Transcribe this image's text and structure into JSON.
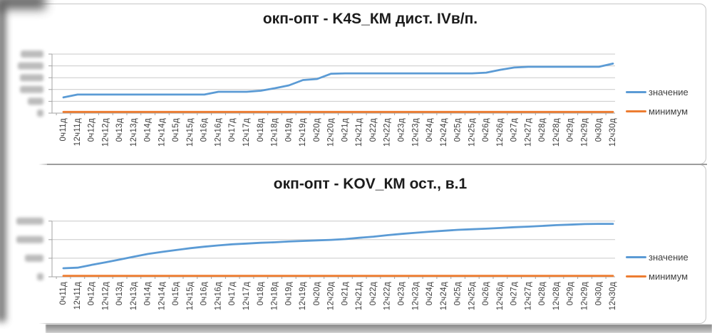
{
  "chart_data": [
    {
      "type": "line",
      "title": "окп-опт - K4S_КМ дист. IVв/п.",
      "categories": [
        "0ч11д",
        "12ч11д",
        "0ч12д",
        "12ч12д",
        "0ч13д",
        "12ч13д",
        "0ч14д",
        "12ч14д",
        "0ч15д",
        "12ч15д",
        "0ч16д",
        "12ч16д",
        "0ч17д",
        "12ч17д",
        "0ч18д",
        "12ч18д",
        "0ч19д",
        "12ч19д",
        "0ч20д",
        "12ч20д",
        "0ч21д",
        "12ч21д",
        "0ч22д",
        "12ч22д",
        "0ч23д",
        "12ч23д",
        "0ч24д",
        "12ч24д",
        "0ч25д",
        "12ч25д",
        "0ч26д",
        "12ч26д",
        "0ч27д",
        "12ч27д",
        "0ч28д",
        "12ч28д",
        "0ч29д",
        "12ч29д",
        "0ч30д",
        "12ч30д"
      ],
      "series": [
        {
          "name": "значение",
          "color": "#5B9BD5",
          "values": [
            1.33,
            1.57,
            1.57,
            1.57,
            1.57,
            1.57,
            1.57,
            1.57,
            1.57,
            1.57,
            1.57,
            1.81,
            1.81,
            1.81,
            1.9,
            2.11,
            2.35,
            2.8,
            2.89,
            3.34,
            3.37,
            3.37,
            3.37,
            3.37,
            3.37,
            3.37,
            3.37,
            3.37,
            3.37,
            3.37,
            3.43,
            3.67,
            3.86,
            3.92,
            3.92,
            3.92,
            3.92,
            3.92,
            3.92,
            4.19
          ]
        },
        {
          "name": "минимум",
          "color": "#ED7D31",
          "constant": 0.1
        }
      ],
      "xlabel": "",
      "ylabel": "",
      "ylim": [
        0,
        5
      ],
      "ygrid_count": 6,
      "ytick_labels": "redacted (blurred in source image)",
      "grid": true,
      "legend_position": "right",
      "value_units": "gridline units (y-axis numbers illegible)"
    },
    {
      "type": "line",
      "title": "окп-опт - KOV_КМ ост., в.1",
      "categories": [
        "0ч11д",
        "12ч11д",
        "0ч12д",
        "12ч12д",
        "0ч13д",
        "12ч13д",
        "0ч14д",
        "12ч14д",
        "0ч15д",
        "12ч15д",
        "0ч16д",
        "12ч16д",
        "0ч17д",
        "12ч17д",
        "0ч18д",
        "12ч18д",
        "0ч19д",
        "12ч19д",
        "0ч20д",
        "12ч20д",
        "0ч21д",
        "12ч21д",
        "0ч22д",
        "12ч22д",
        "0ч23д",
        "12ч23д",
        "0ч24д",
        "12ч24д",
        "0ч25д",
        "12ч25д",
        "0ч26д",
        "12ч26д",
        "0ч27д",
        "12ч27д",
        "0ч28д",
        "12ч28д",
        "0ч29д",
        "12ч29д",
        "0ч30д",
        "12ч30д"
      ],
      "series": [
        {
          "name": "значение",
          "color": "#5B9BD5",
          "values": [
            0.46,
            0.49,
            0.64,
            0.78,
            0.93,
            1.08,
            1.23,
            1.34,
            1.44,
            1.54,
            1.62,
            1.69,
            1.75,
            1.79,
            1.83,
            1.86,
            1.9,
            1.93,
            1.96,
            1.99,
            2.03,
            2.1,
            2.16,
            2.24,
            2.31,
            2.37,
            2.43,
            2.48,
            2.53,
            2.56,
            2.59,
            2.63,
            2.67,
            2.7,
            2.74,
            2.78,
            2.81,
            2.84,
            2.85,
            2.85
          ]
        },
        {
          "name": "минимум",
          "color": "#ED7D31",
          "constant": 0.05
        }
      ],
      "xlabel": "",
      "ylabel": "",
      "ylim": [
        0,
        3
      ],
      "ygrid_count": 4,
      "ytick_labels": "redacted (blurred in source image)",
      "grid": true,
      "legend_position": "right",
      "value_units": "gridline units (y-axis numbers illegible)"
    }
  ]
}
